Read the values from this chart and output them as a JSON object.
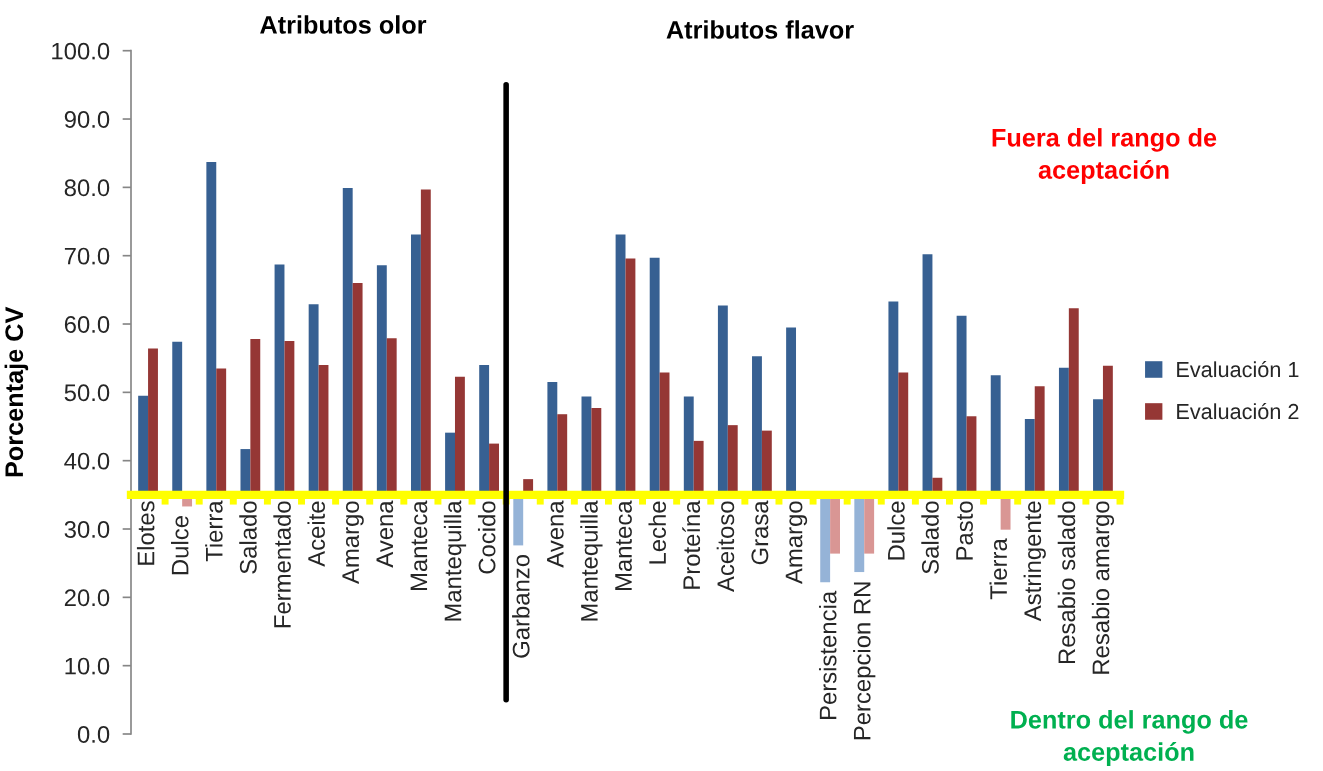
{
  "chart_data": {
    "type": "bar",
    "ylabel": "Porcentaje CV",
    "categories": [
      "Elotes",
      "Dulce",
      "Tierra",
      "Salado",
      "Fermentado",
      "Aceite",
      "Amargo",
      "Avena",
      "Manteca",
      "Mantequilla",
      "Cocido",
      "Garbanzo",
      "Avena",
      "Mantequilla",
      "Manteca",
      "Leche",
      "Proteína",
      "Aceitoso",
      "Grasa",
      "Amargo",
      "Persistencia",
      "Percepcion RN",
      "Dulce",
      "Salado",
      "Pasto",
      "Tierra",
      "Astringente",
      "Resabio salado",
      "Resabio amargo"
    ],
    "series": [
      {
        "name": "Evaluación 1",
        "color": "#376092",
        "base": [
          35,
          35,
          35,
          35,
          35,
          35,
          35,
          35,
          35,
          35,
          35,
          35,
          35,
          35,
          35,
          35,
          35,
          35,
          35,
          35,
          35,
          35,
          35,
          35,
          35,
          35,
          35,
          35,
          35
        ],
        "values": [
          14.5,
          22.4,
          48.7,
          6.7,
          33.7,
          27.9,
          44.9,
          33.6,
          38.1,
          9.1,
          19.0,
          -7.4,
          16.5,
          14.4,
          38.1,
          34.7,
          14.4,
          27.7,
          20.3,
          24.5,
          -12.8,
          -11.3,
          28.3,
          35.2,
          26.2,
          17.5,
          11.1,
          18.6,
          14.0
        ],
        "colors": [
          "#376092",
          "#376092",
          "#376092",
          "#376092",
          "#376092",
          "#376092",
          "#376092",
          "#376092",
          "#376092",
          "#376092",
          "#376092",
          "#95b3d7",
          "#376092",
          "#376092",
          "#376092",
          "#376092",
          "#376092",
          "#376092",
          "#376092",
          "#376092",
          "#95b3d7",
          "#95b3d7",
          "#376092",
          "#376092",
          "#376092",
          "#376092",
          "#376092",
          "#376092",
          "#376092"
        ]
      },
      {
        "name": "Evaluación 2",
        "color": "#953735",
        "base": [
          35,
          35,
          35,
          35,
          35,
          35,
          35,
          35,
          35,
          35,
          35,
          35,
          35,
          35,
          35,
          35,
          35,
          35,
          35,
          null,
          35,
          35,
          35,
          35,
          35,
          35,
          35,
          35,
          35
        ],
        "values": [
          21.4,
          -1.7,
          18.5,
          22.8,
          22.5,
          19.0,
          31.0,
          22.9,
          44.7,
          17.3,
          7.5,
          2.3,
          11.8,
          12.7,
          34.6,
          17.9,
          7.9,
          10.2,
          9.4,
          null,
          -8.6,
          -8.6,
          17.9,
          2.5,
          11.5,
          -5.1,
          15.9,
          27.3,
          18.9
        ],
        "colors": [
          "#953735",
          "#d99694",
          "#953735",
          "#953735",
          "#953735",
          "#953735",
          "#953735",
          "#953735",
          "#953735",
          "#953735",
          "#953735",
          "#953735",
          "#953735",
          "#953735",
          "#953735",
          "#953735",
          "#953735",
          "#953735",
          "#953735",
          "#953735",
          "#d99694",
          "#d99694",
          "#953735",
          "#953735",
          "#953735",
          "#d99694",
          "#953735",
          "#953735",
          "#953735"
        ]
      }
    ],
    "ylim": [
      0,
      100
    ],
    "yticks": [
      {
        "value": 0,
        "label": "0.0"
      },
      {
        "value": 10,
        "label": "10.0"
      },
      {
        "value": 20,
        "label": "20.0"
      },
      {
        "value": 30,
        "label": "30.0"
      },
      {
        "value": 40,
        "label": "40.0"
      },
      {
        "value": 50,
        "label": "50.0"
      },
      {
        "value": 60,
        "label": "60.0"
      },
      {
        "value": 70,
        "label": "70.0"
      },
      {
        "value": 80,
        "label": "80.0"
      },
      {
        "value": 90,
        "label": "90.0"
      },
      {
        "value": 100,
        "label": "100.0"
      }
    ],
    "annotations": [
      "Atributos olor",
      "Atributos flavor",
      "Fuera del rango de\naceptación",
      "Dentro del rango de\naceptación"
    ],
    "legend": "right",
    "grid": false
  }
}
